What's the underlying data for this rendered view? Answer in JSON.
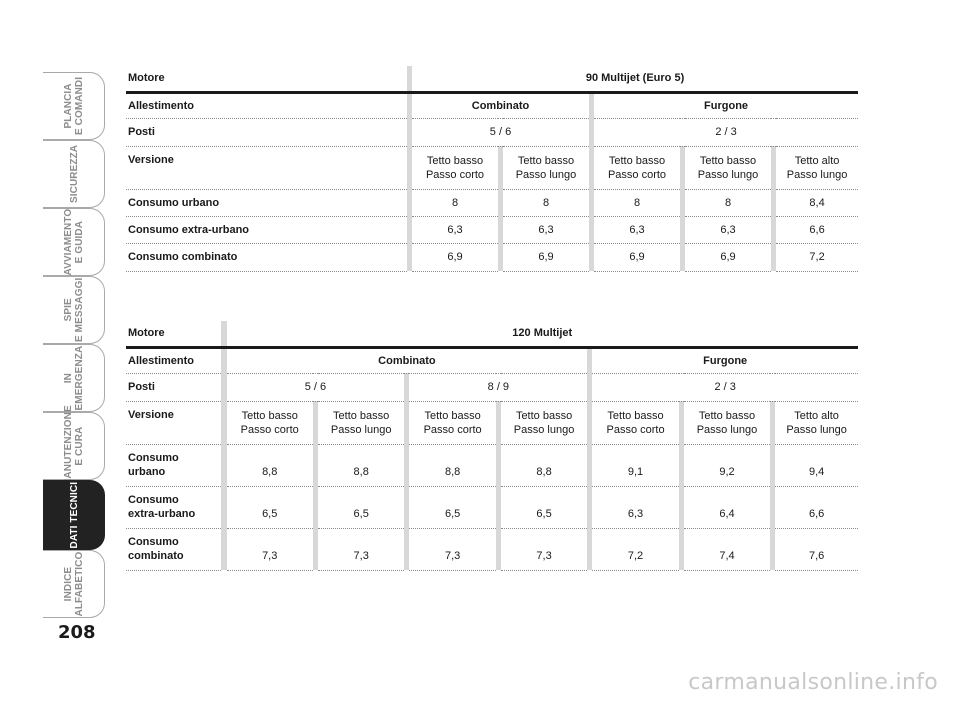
{
  "sidebar": {
    "tabs": [
      {
        "label": "PLANCIA\nE COMANDI"
      },
      {
        "label": "SICUREZZA"
      },
      {
        "label": "AVVIAMENTO\nE GUIDA"
      },
      {
        "label": "SPIE\nE MESSAGGI"
      },
      {
        "label": "IN\nEMERGENZA"
      },
      {
        "label": "MANUTENZIONE\nE CURA"
      },
      {
        "label": "DATI TECNICI"
      },
      {
        "label": "INDICE\nALFABETICO"
      }
    ],
    "active_tab": "DATI TECNICI",
    "page_number": "208"
  },
  "table1": {
    "motore_label": "Motore",
    "motore_value": "90 Multijet (Euro 5)",
    "allestimento_label": "Allestimento",
    "allestimento": [
      "Combinato",
      "Furgone"
    ],
    "posti_label": "Posti",
    "posti": [
      "5 / 6",
      "2 / 3"
    ],
    "versione_label": "Versione",
    "versione": [
      [
        "Tetto basso",
        "Passo corto"
      ],
      [
        "Tetto basso",
        "Passo lungo"
      ],
      [
        "Tetto basso",
        "Passo corto"
      ],
      [
        "Tetto basso",
        "Passo lungo"
      ],
      [
        "Tetto alto",
        "Passo lungo"
      ]
    ],
    "rows": [
      {
        "label": "Consumo urbano",
        "values": [
          "8",
          "8",
          "8",
          "8",
          "8,4"
        ]
      },
      {
        "label": "Consumo extra-urbano",
        "values": [
          "6,3",
          "6,3",
          "6,3",
          "6,3",
          "6,6"
        ]
      },
      {
        "label": "Consumo combinato",
        "values": [
          "6,9",
          "6,9",
          "6,9",
          "6,9",
          "7,2"
        ]
      }
    ]
  },
  "table2": {
    "motore_label": "Motore",
    "motore_value": "120 Multijet",
    "allestimento_label": "Allestimento",
    "allestimento": [
      "Combinato",
      "Furgone"
    ],
    "posti_label": "Posti",
    "posti": [
      "5 / 6",
      "8 / 9",
      "2 / 3"
    ],
    "versione_label": "Versione",
    "versione": [
      [
        "Tetto basso",
        "Passo corto"
      ],
      [
        "Tetto basso",
        "Passo lungo"
      ],
      [
        "Tetto basso",
        "Passo corto"
      ],
      [
        "Tetto basso",
        "Passo lungo"
      ],
      [
        "Tetto basso",
        "Passo corto"
      ],
      [
        "Tetto basso",
        "Passo lungo"
      ],
      [
        "Tetto alto",
        "Passo lungo"
      ]
    ],
    "rows": [
      {
        "label": [
          "Consumo",
          "urbano"
        ],
        "values": [
          "8,8",
          "8,8",
          "8,8",
          "8,8",
          "9,1",
          "9,2",
          "9,4"
        ]
      },
      {
        "label": [
          "Consumo",
          "extra-urbano"
        ],
        "values": [
          "6,5",
          "6,5",
          "6,5",
          "6,5",
          "6,3",
          "6,4",
          "6,6"
        ]
      },
      {
        "label": [
          "Consumo",
          "combinato"
        ],
        "values": [
          "7,3",
          "7,3",
          "7,3",
          "7,3",
          "7,2",
          "7,4",
          "7,6"
        ]
      }
    ]
  },
  "watermark": "carmanualsonline.info"
}
